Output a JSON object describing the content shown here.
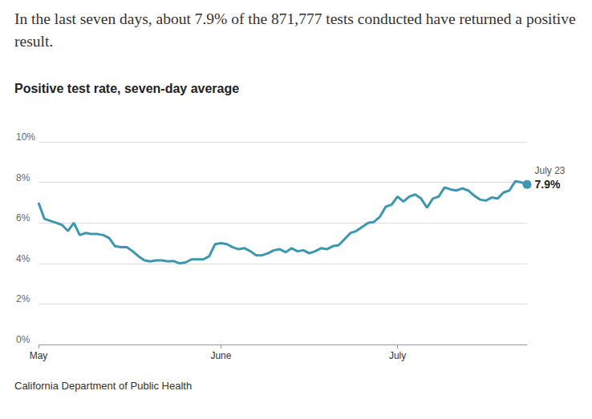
{
  "chart_data": {
    "type": "line",
    "title": "In the last seven days, about 7.9% of the 871,777 tests conducted have returned a positive result.",
    "subtitle": "Positive test rate, seven-day average",
    "source": "California Department of Public Health",
    "categories": [
      "May",
      null,
      null,
      null,
      null,
      null,
      null,
      null,
      null,
      null,
      null,
      null,
      null,
      null,
      null,
      null,
      null,
      null,
      null,
      null,
      null,
      null,
      null,
      null,
      null,
      null,
      null,
      null,
      null,
      null,
      null,
      "June",
      null,
      null,
      null,
      null,
      null,
      null,
      null,
      null,
      null,
      null,
      null,
      null,
      null,
      null,
      null,
      null,
      null,
      null,
      null,
      null,
      null,
      null,
      null,
      null,
      null,
      null,
      null,
      null,
      null,
      "July",
      null,
      null,
      null,
      null,
      null,
      null,
      null,
      null,
      null,
      null,
      null,
      null,
      null,
      null,
      null,
      null,
      null,
      null,
      null,
      null,
      null,
      null
    ],
    "values": [
      7.0,
      6.2,
      6.1,
      6.0,
      5.9,
      5.6,
      6.0,
      5.4,
      5.5,
      5.45,
      5.45,
      5.4,
      5.25,
      4.85,
      4.8,
      4.8,
      4.6,
      4.35,
      4.15,
      4.1,
      4.15,
      4.15,
      4.1,
      4.12,
      4.0,
      4.05,
      4.2,
      4.2,
      4.2,
      4.35,
      4.95,
      5.0,
      4.95,
      4.8,
      4.7,
      4.75,
      4.6,
      4.4,
      4.4,
      4.5,
      4.65,
      4.7,
      4.55,
      4.75,
      4.6,
      4.65,
      4.5,
      4.6,
      4.75,
      4.7,
      4.85,
      4.9,
      5.2,
      5.5,
      5.6,
      5.8,
      6.0,
      6.05,
      6.3,
      6.8,
      6.9,
      7.3,
      7.05,
      7.3,
      7.4,
      7.2,
      6.75,
      7.2,
      7.3,
      7.75,
      7.65,
      7.6,
      7.7,
      7.6,
      7.35,
      7.15,
      7.1,
      7.25,
      7.2,
      7.5,
      7.6,
      8.05,
      8.0,
      7.9
    ],
    "color": "#3d97b0",
    "ylim": [
      0,
      10
    ],
    "yticks": [
      {
        "value": 0,
        "label": "0%"
      },
      {
        "value": 2,
        "label": "2%"
      },
      {
        "value": 4,
        "label": "4%"
      },
      {
        "value": 6,
        "label": "6%"
      },
      {
        "value": 8,
        "label": "8%"
      },
      {
        "value": 10,
        "label": "10%"
      }
    ],
    "grid": true,
    "end_label": {
      "date": "July 23",
      "value": 7.9,
      "value_label": "7.9%"
    }
  }
}
